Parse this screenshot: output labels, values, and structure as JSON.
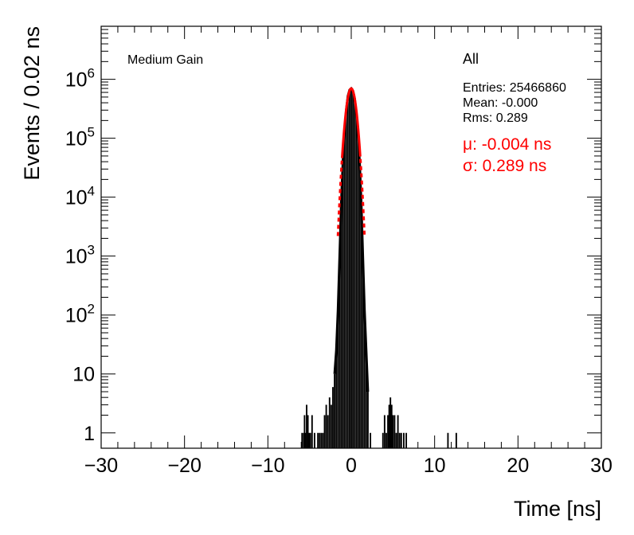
{
  "chart_data": {
    "type": "histogram",
    "title": "",
    "xlabel": "Time [ns]",
    "ylabel": "Events / 0.02 ns",
    "xlim": [
      -30,
      30
    ],
    "ylim": [
      0.55,
      8000000
    ],
    "yscale": "log",
    "x_ticks": [
      -30,
      -20,
      -10,
      0,
      10,
      20,
      30
    ],
    "x_tick_labels": [
      "−30",
      "−20",
      "−10",
      "0",
      "10",
      "20",
      "30"
    ],
    "y_ticks": [
      1,
      10,
      100,
      1000,
      10000,
      100000,
      1000000
    ],
    "y_tick_labels": [
      {
        "base": "1",
        "exp": ""
      },
      {
        "base": "10",
        "exp": ""
      },
      {
        "base": "10",
        "exp": "2"
      },
      {
        "base": "10",
        "exp": "3"
      },
      {
        "base": "10",
        "exp": "4"
      },
      {
        "base": "10",
        "exp": "5"
      },
      {
        "base": "10",
        "exp": "6"
      }
    ],
    "grid": false,
    "histogram_color": "#000000",
    "fit_color": "#ff0000",
    "series": [
      {
        "name": "All",
        "kind": "histogram",
        "bins": [
          [
            -5.9,
            1
          ],
          [
            -5.7,
            1
          ],
          [
            -5.6,
            2
          ],
          [
            -5.5,
            1
          ],
          [
            -5.35,
            3
          ],
          [
            -5.2,
            2
          ],
          [
            -5.05,
            1
          ],
          [
            -4.9,
            1
          ],
          [
            -4.7,
            2
          ],
          [
            -4.4,
            1
          ],
          [
            -4.0,
            1
          ],
          [
            -3.8,
            1
          ],
          [
            -3.6,
            1
          ],
          [
            -3.4,
            1
          ],
          [
            -3.2,
            2
          ],
          [
            -3.0,
            3
          ],
          [
            -2.8,
            2
          ],
          [
            -2.6,
            4
          ],
          [
            -2.4,
            3
          ],
          [
            -2.2,
            6
          ],
          [
            -2.0,
            10
          ],
          [
            -1.8,
            25
          ],
          [
            -1.6,
            120
          ],
          [
            -1.4,
            900
          ],
          [
            -1.2,
            8000
          ],
          [
            -1.0,
            40000
          ],
          [
            -0.8,
            130000
          ],
          [
            -0.6,
            300000
          ],
          [
            -0.4,
            520000
          ],
          [
            -0.2,
            660000
          ],
          [
            0.0,
            700000
          ],
          [
            0.2,
            640000
          ],
          [
            0.4,
            480000
          ],
          [
            0.6,
            280000
          ],
          [
            0.8,
            120000
          ],
          [
            1.0,
            40000
          ],
          [
            1.2,
            8000
          ],
          [
            1.4,
            900
          ],
          [
            1.6,
            120
          ],
          [
            1.8,
            25
          ],
          [
            2.0,
            5
          ],
          [
            2.3,
            1
          ],
          [
            3.8,
            1
          ],
          [
            4.0,
            2
          ],
          [
            4.2,
            1
          ],
          [
            4.4,
            2
          ],
          [
            4.55,
            3
          ],
          [
            4.7,
            4
          ],
          [
            4.85,
            3
          ],
          [
            5.0,
            2
          ],
          [
            5.2,
            2
          ],
          [
            5.4,
            1
          ],
          [
            5.6,
            2
          ],
          [
            5.8,
            1
          ],
          [
            6.0,
            1
          ],
          [
            6.3,
            1
          ],
          [
            6.6,
            1
          ],
          [
            11.6,
            1
          ],
          [
            12.6,
            1
          ]
        ]
      },
      {
        "name": "fit",
        "kind": "gaussian",
        "mu": -0.004,
        "sigma": 0.289,
        "amplitude": 700000
      }
    ]
  },
  "labels": {
    "gain": "Medium Gain",
    "selection": "All",
    "entries": "Entries: 25466860",
    "mean": "Mean: -0.000",
    "rms": "Rms: 0.289",
    "mu_fit": "μ: -0.004 ns",
    "sigma_fit": "σ: 0.289 ns"
  }
}
